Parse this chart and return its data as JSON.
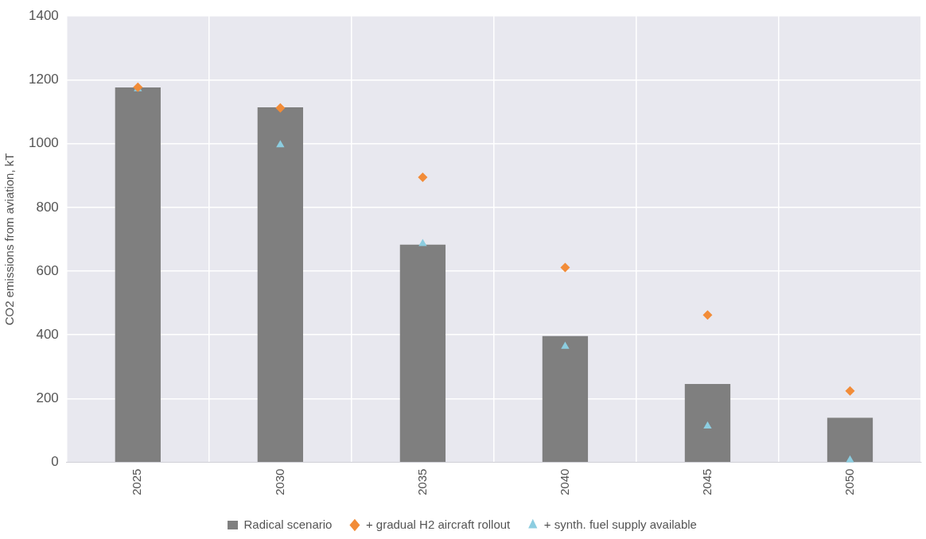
{
  "chart_data": {
    "type": "bar",
    "ylabel": "CO2 emissions from aviation, kT",
    "categories": [
      "2025",
      "2030",
      "2035",
      "2040",
      "2045",
      "2050"
    ],
    "series": [
      {
        "name": "Radical scenario",
        "color": "#7f7f7f",
        "values": [
          1176,
          1114,
          683,
          396,
          246,
          140
        ]
      },
      {
        "name": "+ gradual H2 aircraft rollout",
        "type": "scatter",
        "marker": "diamond",
        "color": "#f28c38",
        "values": [
          1177,
          1112,
          894,
          611,
          462,
          224
        ]
      },
      {
        "name": "+ synth. fuel supply available",
        "type": "scatter",
        "marker": "triangle",
        "color": "#8ccde0",
        "values": [
          1172,
          996,
          686,
          364,
          114,
          7
        ]
      }
    ],
    "ylim": [
      0,
      1400
    ],
    "yticks": [
      0,
      200,
      400,
      600,
      800,
      1000,
      1200,
      1400
    ],
    "grid": true,
    "legend": "bottom"
  }
}
